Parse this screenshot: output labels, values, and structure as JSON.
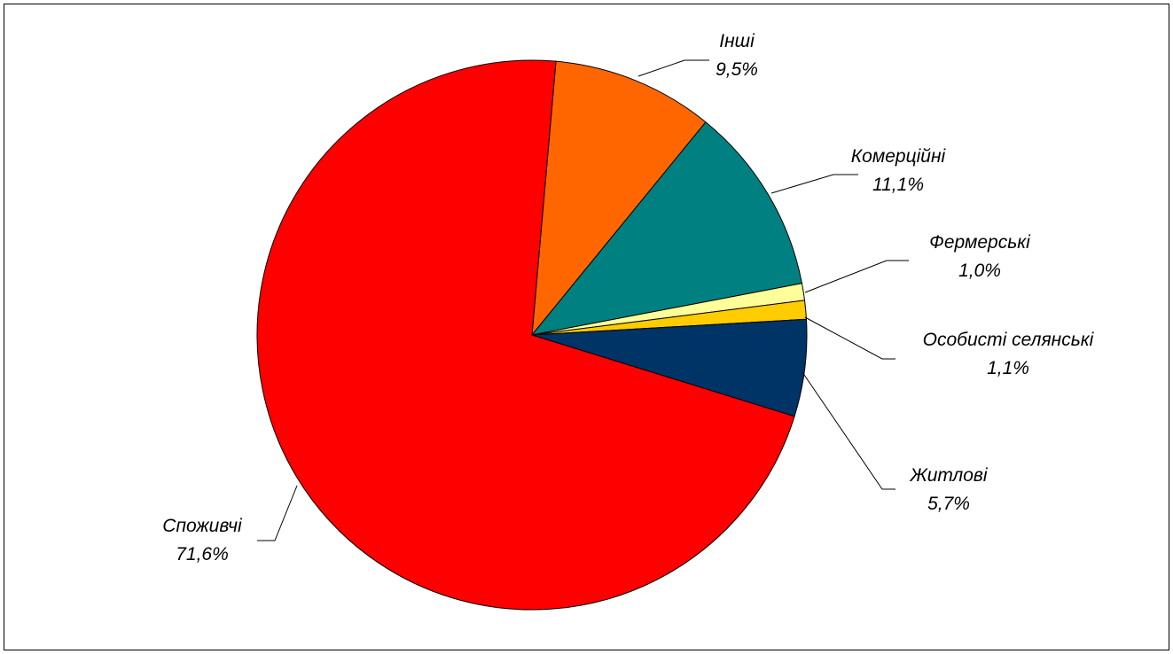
{
  "chart_data": {
    "type": "pie",
    "title": "",
    "start_angle_deg": -85,
    "direction": "clockwise",
    "slices": [
      {
        "label": "Інші",
        "value": 9.5,
        "value_text": "9,5%",
        "color": "#FF6600"
      },
      {
        "label": "Комерційні",
        "value": 11.1,
        "value_text": "11,1%",
        "color": "#008080"
      },
      {
        "label": "Фермерські",
        "value": 1.0,
        "value_text": "1,0%",
        "color": "#FFFF99"
      },
      {
        "label": "Особисті селянські",
        "value": 1.1,
        "value_text": "1,1%",
        "color": "#FFCC00"
      },
      {
        "label": "Житлові",
        "value": 5.7,
        "value_text": "5,7%",
        "color": "#003366"
      },
      {
        "label": "Споживчі",
        "value": 71.6,
        "value_text": "71,6%",
        "color": "#FF0000"
      }
    ]
  }
}
